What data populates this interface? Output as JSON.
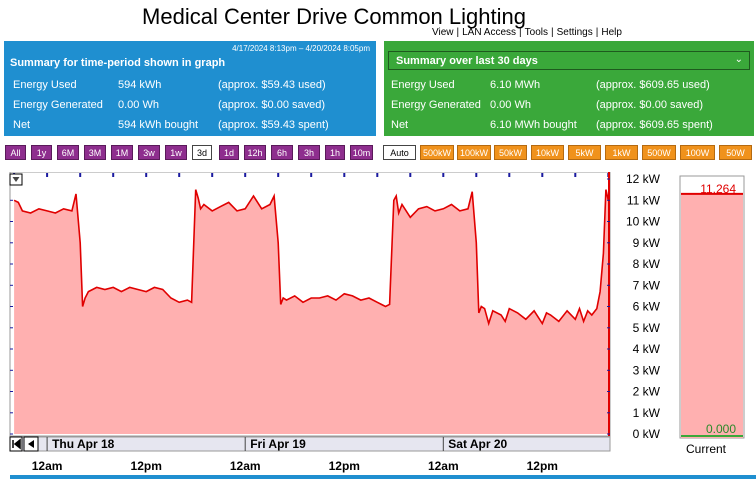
{
  "title": "Medical Center Drive Common Lighting",
  "nav": [
    "View",
    "LAN Access",
    "Tools",
    "Settings",
    "Help"
  ],
  "period_summary": {
    "range": "4/17/2024 8:13pm – 4/20/2024 8:05pm",
    "title": "Summary for time-period shown in graph",
    "rows": [
      {
        "label": "Energy Used",
        "value": "594 kWh",
        "approx": "(approx. $59.43 used)"
      },
      {
        "label": "Energy Generated",
        "value": "0.00 Wh",
        "approx": "(approx. $0.00 saved)"
      },
      {
        "label": "Net",
        "value": "594 kWh bought",
        "approx": "(approx. $59.43 spent)"
      }
    ]
  },
  "recent_summary": {
    "selector": "Summary over last 30 days",
    "rows": [
      {
        "label": "Energy Used",
        "value": "6.10 MWh",
        "approx": "(approx. $609.65 used)"
      },
      {
        "label": "Energy Generated",
        "value": "0.00 Wh",
        "approx": "(approx. $0.00 saved)"
      },
      {
        "label": "Net",
        "value": "6.10 MWh bought",
        "approx": "(approx. $609.65 spent)"
      }
    ]
  },
  "time_buttons": [
    "All",
    "1y",
    "6M",
    "3M",
    "1M",
    "3w",
    "1w",
    "3d",
    "1d",
    "12h",
    "6h",
    "3h",
    "1h",
    "10m"
  ],
  "time_selected": "3d",
  "scale_buttons": [
    "Auto",
    "500kW",
    "100kW",
    "50kW",
    "10kW",
    "5kW",
    "1kW",
    "500W",
    "100W",
    "50W"
  ],
  "scale_selected": "Auto",
  "colors": {
    "line": "#e00000",
    "fill": "#ffb0b0",
    "blue_panel": "#1f8fd0",
    "green_panel": "#3aa83a",
    "purple": "#8e2e8e",
    "orange": "#f0921c"
  },
  "chart_data": {
    "type": "area",
    "ylabel_unit": "kW",
    "ylim": [
      0,
      12
    ],
    "yticks": [
      "12 kW",
      "11 kW",
      "10 kW",
      "9 kW",
      "8 kW",
      "7 kW",
      "6 kW",
      "5 kW",
      "4 kW",
      "3 kW",
      "2 kW",
      "1 kW",
      "0 kW"
    ],
    "day_labels": [
      "Thu Apr 18",
      "Fri Apr 19",
      "Sat Apr 20"
    ],
    "hour_labels": [
      "12am",
      "12pm",
      "12am",
      "12pm",
      "12am",
      "12pm"
    ],
    "grid": false,
    "series": [
      {
        "x": [
          -4,
          -3.5,
          -3,
          -2,
          -1,
          0,
          1,
          2,
          3,
          3.5,
          4,
          4.3,
          4.6,
          5,
          6,
          7,
          8,
          9,
          10,
          11,
          12,
          13,
          14,
          15,
          16,
          17,
          17.5,
          18,
          18.3,
          18.6,
          19,
          20,
          21,
          22,
          23,
          24,
          25,
          26,
          27,
          27.5,
          28,
          28.3,
          28.6,
          29,
          30,
          31,
          32,
          33,
          34,
          35,
          36,
          37,
          38,
          39,
          40,
          41,
          41.5,
          42,
          42.3,
          42.6,
          43,
          44,
          45,
          46,
          47,
          48,
          49,
          50,
          51,
          51.5,
          52,
          52.3,
          52.6,
          53,
          53.5,
          54,
          55,
          55.5,
          56,
          57,
          58,
          59,
          60,
          60.5,
          61,
          62,
          63,
          64,
          64.5,
          65,
          65.5,
          66,
          66.6,
          67,
          67.4,
          67.7,
          68
        ],
        "values": [
          11.0,
          10.9,
          10.5,
          10.4,
          10.6,
          10.5,
          10.4,
          10.6,
          10.5,
          11.3,
          9.0,
          6.0,
          6.4,
          6.7,
          6.9,
          6.8,
          6.9,
          6.7,
          6.9,
          6.8,
          6.7,
          6.9,
          6.8,
          6.4,
          6.2,
          6.3,
          6.2,
          11.5,
          11.1,
          10.6,
          10.8,
          10.5,
          10.7,
          10.9,
          10.5,
          10.6,
          11.2,
          10.6,
          10.8,
          11.2,
          9.0,
          6.1,
          6.4,
          6.3,
          6.5,
          6.2,
          6.4,
          6.4,
          6.5,
          6.3,
          6.6,
          6.5,
          6.3,
          6.4,
          6.2,
          6.0,
          6.1,
          11.0,
          11.2,
          10.4,
          10.8,
          10.2,
          10.6,
          10.7,
          10.5,
          10.6,
          10.8,
          10.5,
          10.6,
          11.4,
          9.0,
          5.7,
          6.0,
          5.9,
          5.2,
          5.8,
          5.6,
          5.3,
          5.9,
          5.7,
          5.4,
          5.8,
          5.2,
          5.7,
          5.6,
          5.3,
          5.8,
          5.4,
          5.9,
          5.3,
          5.8,
          5.6,
          5.9,
          6.7,
          8.5,
          11.5,
          11.0
        ]
      }
    ],
    "current_value": "11.264",
    "current_min": "0.000",
    "current_label": "Current"
  }
}
